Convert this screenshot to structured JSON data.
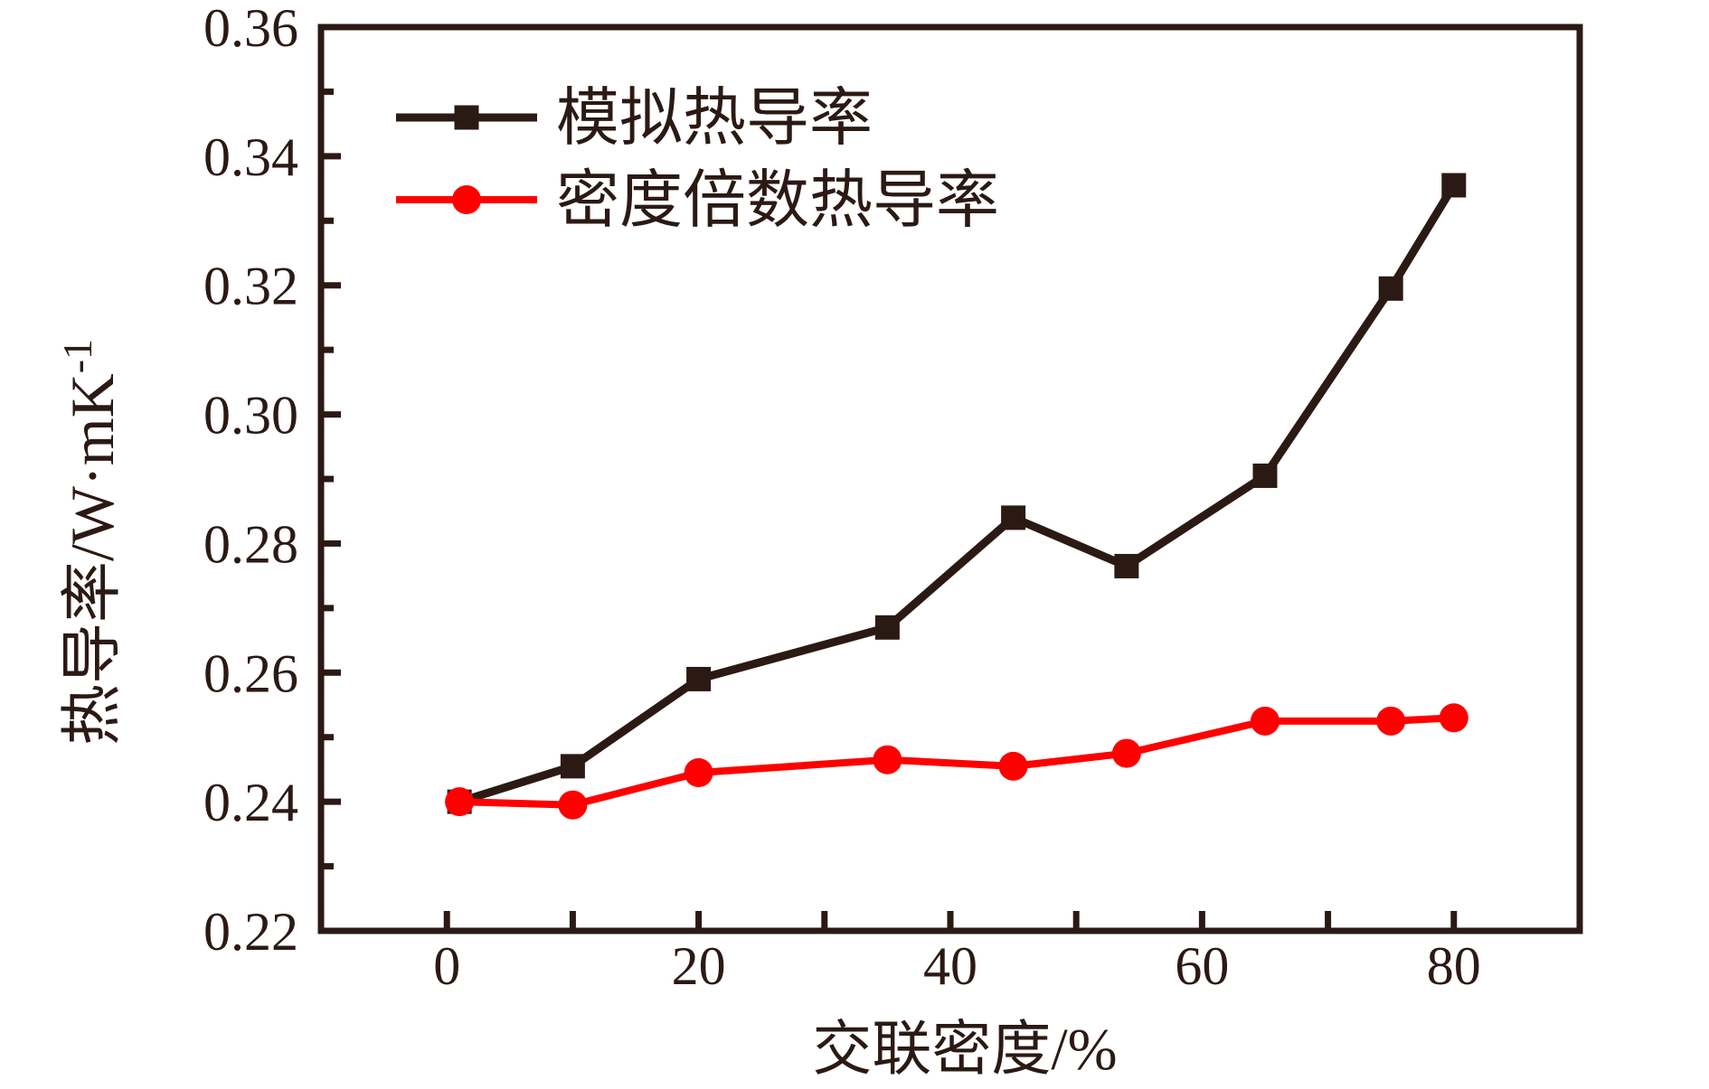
{
  "figure": {
    "background": "#ffffff"
  },
  "chart_data": {
    "type": "line",
    "title": "",
    "xlabel": "交联密度/%",
    "ylabel": "热导率/W·mK⁻¹",
    "ylabel_base": "热导率/W·mK",
    "ylabel_sup": "-1",
    "xlim": [
      -10,
      90
    ],
    "ylim": [
      0.22,
      0.36
    ],
    "grid": false,
    "legend_position": "upper-left-inside",
    "axis_color": "#2b1a14",
    "x_ticks": [
      0,
      10,
      20,
      30,
      40,
      50,
      60,
      70,
      80
    ],
    "x_tick_labels": [
      {
        "value": 0,
        "label": "0"
      },
      {
        "value": 20,
        "label": "20"
      },
      {
        "value": 40,
        "label": "40"
      },
      {
        "value": 60,
        "label": "60"
      },
      {
        "value": 80,
        "label": "80"
      }
    ],
    "y_major_ticks": [
      0.24,
      0.26,
      0.28,
      0.3,
      0.32,
      0.34
    ],
    "y_minor_ticks": [
      0.23,
      0.25,
      0.27,
      0.29,
      0.31,
      0.33,
      0.35
    ],
    "y_tick_labels": [
      {
        "value": 0.22,
        "label": "0.22"
      },
      {
        "value": 0.24,
        "label": "0.24"
      },
      {
        "value": 0.26,
        "label": "0.26"
      },
      {
        "value": 0.28,
        "label": "0.28"
      },
      {
        "value": 0.3,
        "label": "0.30"
      },
      {
        "value": 0.32,
        "label": "0.32"
      },
      {
        "value": 0.34,
        "label": "0.34"
      },
      {
        "value": 0.36,
        "label": "0.36"
      }
    ],
    "series": [
      {
        "name": "模拟热导率",
        "color": "#2b1a14",
        "marker": "square",
        "x": [
          1,
          10,
          20,
          35,
          45,
          54,
          65,
          75,
          80
        ],
        "y": [
          0.24,
          0.2455,
          0.259,
          0.267,
          0.284,
          0.2765,
          0.2905,
          0.3195,
          0.3355
        ]
      },
      {
        "name": "密度倍数热导率",
        "color": "#ff0000",
        "marker": "circle",
        "x": [
          1,
          10,
          20,
          35,
          45,
          54,
          65,
          75,
          80
        ],
        "y": [
          0.24,
          0.2395,
          0.2445,
          0.2465,
          0.2455,
          0.2475,
          0.2525,
          0.2525,
          0.253
        ]
      }
    ]
  }
}
